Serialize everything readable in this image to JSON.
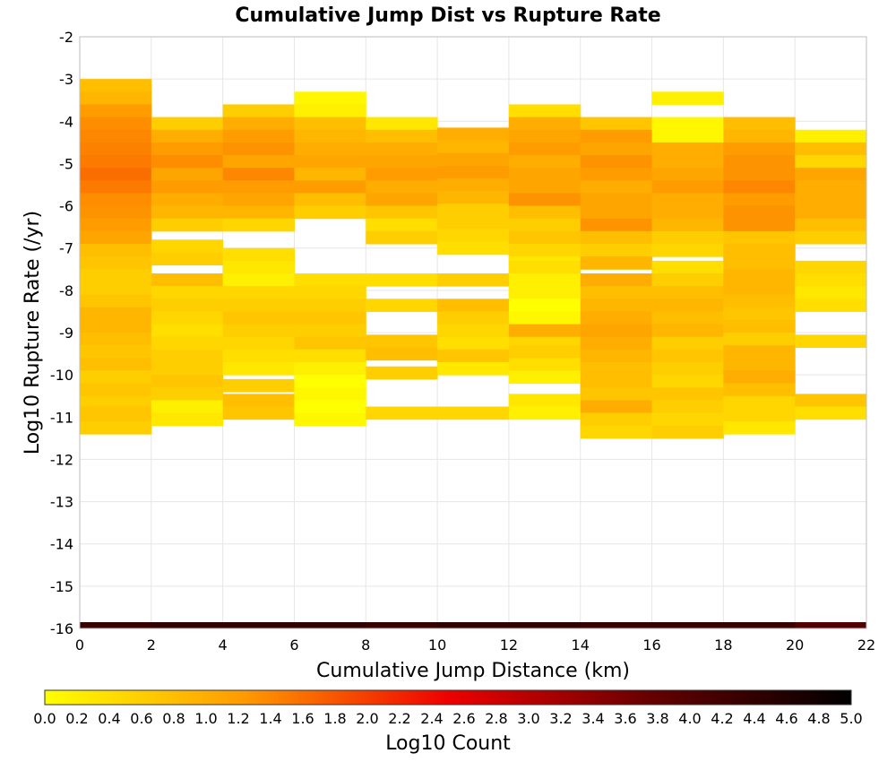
{
  "chart_data": {
    "type": "heatmap",
    "title": "Cumulative Jump Dist vs Rupture Rate",
    "xlabel": "Cumulative Jump Distance (km)",
    "ylabel": "Log10 Rupture Rate (/yr)",
    "xlim": [
      0,
      22
    ],
    "ylim": [
      -16,
      -2
    ],
    "x_ticks": [
      "0",
      "2",
      "4",
      "6",
      "8",
      "10",
      "12",
      "14",
      "16",
      "18",
      "20",
      "22"
    ],
    "y_ticks": [
      "-2",
      "-3",
      "-4",
      "-5",
      "-6",
      "-7",
      "-8",
      "-9",
      "-10",
      "-11",
      "-12",
      "-13",
      "-14",
      "-15",
      "-16"
    ],
    "x_bin_width": 2,
    "y_bin_height": 0.3,
    "grid": true,
    "colorbar": {
      "label": "Log10 Count",
      "min": 0,
      "max": 5,
      "ticks": [
        "0.0",
        "0.2",
        "0.4",
        "0.6",
        "0.8",
        "1.0",
        "1.2",
        "1.4",
        "1.6",
        "1.8",
        "2.0",
        "2.2",
        "2.4",
        "2.6",
        "2.8",
        "3.0",
        "3.2",
        "3.4",
        "3.6",
        "3.8",
        "4.0",
        "4.2",
        "4.4",
        "4.6",
        "4.8",
        "5.0"
      ],
      "stops": [
        {
          "v": 0.0,
          "color": "#ffff00"
        },
        {
          "v": 1.25,
          "color": "#ff9900"
        },
        {
          "v": 2.5,
          "color": "#ee0000"
        },
        {
          "v": 3.75,
          "color": "#660000"
        },
        {
          "v": 5.0,
          "color": "#000000"
        }
      ]
    },
    "bottom_row": {
      "y": -16,
      "values": [
        4.3,
        4.4,
        4.4,
        4.4,
        4.3,
        4.4,
        4.4,
        4.3,
        4.3,
        4.3,
        4.0
      ]
    },
    "columns": [
      {
        "x0": 0,
        "cells": [
          {
            "y": -3.0,
            "top": -3.0,
            "values": [
              0.8,
              0.9,
              1.2,
              1.35,
              1.4,
              1.45,
              1.5,
              1.6,
              1.5,
              1.35,
              1.3,
              1.2,
              1.1,
              0.8,
              0.7,
              0.6,
              0.6,
              0.7,
              0.9,
              0.9,
              0.8,
              0.7,
              0.8,
              0.6,
              0.7,
              0.6,
              0.7,
              0.6
            ]
          },
          {
            "y": -10.8,
            "top": -10.75,
            "values": [
              0.7
            ]
          }
        ]
      },
      {
        "x0": 2,
        "cells": [
          {
            "y": -3.9,
            "top": -3.9,
            "values": [
              0.6,
              1.0,
              1.2,
              1.35,
              1.1,
              1.2,
              1.0,
              0.9,
              0.6
            ]
          },
          {
            "y": -6.8,
            "top": -6.8,
            "values": [
              0.5,
              0.6
            ]
          },
          {
            "y": -7.6,
            "top": -7.6,
            "values": [
              0.8,
              0.5,
              0.6,
              0.5,
              0.4,
              0.5,
              0.6,
              0.6,
              0.7,
              0.6,
              0.2,
              0.3
            ]
          }
        ]
      },
      {
        "x0": 4,
        "cells": [
          {
            "y": -3.6,
            "top": -3.6,
            "values": [
              0.6,
              1.0,
              1.2,
              1.3,
              1.1,
              1.4,
              1.2,
              1.1,
              0.9,
              0.5
            ]
          },
          {
            "y": -7.0,
            "top": -7.0,
            "values": [
              0.4,
              0.3,
              0.2,
              0.5,
              0.6,
              0.7,
              0.6,
              0.5,
              0.4,
              0.3
            ]
          },
          {
            "y": -10.1,
            "top": -10.1,
            "values": [
              0.6
            ]
          },
          {
            "y": -10.4,
            "top": -10.45,
            "values": [
              0.8,
              0.7
            ]
          }
        ]
      },
      {
        "x0": 6,
        "cells": [
          {
            "y": -3.3,
            "top": -3.3,
            "values": [
              0.1,
              0.2,
              0.8,
              0.9,
              1.0,
              1.1,
              0.9,
              1.2,
              0.8,
              0.6
            ]
          },
          {
            "y": -7.6,
            "top": -7.6,
            "values": [
              0.4,
              0.5,
              0.6,
              0.7,
              0.6,
              0.7,
              0.4,
              0.2,
              0.0,
              0.1,
              0.0,
              0.1
            ]
          }
        ]
      },
      {
        "x0": 8,
        "cells": [
          {
            "y": -3.9,
            "top": -3.9,
            "values": [
              0.3,
              0.8,
              1.0,
              1.1,
              1.2,
              1.0,
              1.1,
              0.7,
              0.4,
              0.6
            ]
          },
          {
            "y": -7.6,
            "top": -7.6,
            "values": [
              0.4
            ]
          },
          {
            "y": -8.2,
            "top": -8.2,
            "values": [
              0.5
            ]
          },
          {
            "y": -9.0,
            "top": -9.05,
            "values": [
              0.7,
              0.8
            ]
          },
          {
            "y": -9.8,
            "top": -9.8,
            "values": [
              0.6
            ]
          },
          {
            "y": -10.8,
            "top": -10.75,
            "values": [
              0.5
            ]
          }
        ]
      },
      {
        "x0": 10,
        "cells": [
          {
            "y": -4.1,
            "top": -4.15,
            "values": [
              1.0,
              0.9,
              1.1,
              1.2,
              1.0,
              0.9,
              0.6,
              0.6,
              0.5,
              0.4
            ]
          },
          {
            "y": -7.6,
            "top": -7.6,
            "values": [
              0.6
            ]
          },
          {
            "y": -8.2,
            "top": -8.2,
            "values": [
              0.8,
              0.6,
              0.5,
              0.4,
              0.7,
              0.3
            ]
          },
          {
            "y": -10.8,
            "top": -10.75,
            "values": [
              0.5
            ]
          }
        ]
      },
      {
        "x0": 12,
        "cells": [
          {
            "y": -3.6,
            "top": -3.6,
            "values": [
              0.4,
              1.0,
              1.1,
              1.2,
              1.0,
              1.1,
              1.1,
              1.3,
              0.8,
              0.6,
              0.7,
              0.5,
              0.3
            ]
          },
          {
            "y": -7.3,
            "top": -7.3,
            "values": [
              0.4,
              0.2,
              0.2,
              0.0,
              0.1,
              1.0,
              0.5
            ]
          },
          {
            "y": -9.3,
            "top": -9.3,
            "values": [
              0.6,
              0.4,
              0.2
            ]
          },
          {
            "y": -10.4,
            "top": -10.45,
            "values": [
              0.3,
              0.2
            ]
          }
        ]
      },
      {
        "x0": 14,
        "cells": [
          {
            "y": -3.9,
            "top": -3.9,
            "values": [
              0.7,
              1.2,
              1.1,
              1.3,
              1.2,
              1.0,
              1.1,
              1.1,
              1.3,
              0.8,
              0.6,
              0.9
            ]
          },
          {
            "y": -7.6,
            "top": -7.6,
            "values": [
              1.0,
              0.8,
              0.9,
              1.0,
              1.1,
              1.0,
              0.9,
              0.8
            ]
          },
          {
            "y": -10.0,
            "top": -10.0,
            "values": [
              0.8,
              0.7,
              1.0,
              0.6,
              0.5
            ]
          }
        ]
      },
      {
        "x0": 16,
        "cells": [
          {
            "y": -3.3,
            "top": -3.3,
            "values": [
              0.2
            ]
          },
          {
            "y": -3.9,
            "top": -3.9,
            "values": [
              0.1,
              0.1,
              1.0,
              1.0,
              1.1,
              1.2,
              1.0,
              1.0,
              0.9,
              0.6,
              0.5
            ]
          },
          {
            "y": -7.3,
            "top": -7.3,
            "values": [
              0.4,
              0.6,
              0.8,
              0.9,
              0.8,
              0.9,
              0.6,
              0.7,
              0.6,
              0.5,
              0.7,
              0.6,
              0.5,
              0.6
            ]
          }
        ]
      },
      {
        "x0": 18,
        "cells": [
          {
            "y": -3.9,
            "top": -3.9,
            "values": [
              0.8,
              0.9,
              1.2,
              1.3,
              1.3,
              1.4,
              1.2,
              1.3,
              1.3,
              0.7,
              0.8,
              0.8,
              0.9,
              0.9,
              0.8,
              0.7,
              0.8,
              0.6,
              0.9,
              0.9,
              1.0,
              0.8,
              0.5,
              0.5,
              0.3
            ]
          }
        ]
      },
      {
        "x0": 20,
        "cells": [
          {
            "y": -4.2,
            "top": -4.2,
            "values": [
              0.2,
              0.8,
              0.5,
              1.1,
              1.0,
              1.0,
              1.0,
              0.8,
              0.6
            ]
          },
          {
            "y": -7.3,
            "top": -7.3,
            "values": [
              0.5,
              0.4,
              0.3,
              0.4
            ]
          },
          {
            "y": -9.0,
            "top": -9.05,
            "values": [
              0.5
            ]
          },
          {
            "y": -10.4,
            "top": -10.45,
            "values": [
              0.7
            ]
          },
          {
            "y": -10.8,
            "top": -10.75,
            "values": [
              0.4
            ]
          }
        ]
      }
    ]
  }
}
